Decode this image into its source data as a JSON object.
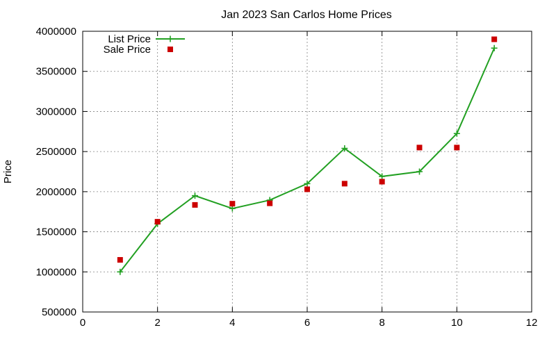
{
  "chart_data": {
    "type": "line",
    "title": "Jan 2023 San Carlos Home Prices",
    "xlabel": "",
    "ylabel": "Price",
    "xlim": [
      0,
      12
    ],
    "ylim": [
      500000,
      4000000
    ],
    "xticks": [
      "0",
      "2",
      "4",
      "6",
      "8",
      "10",
      "12"
    ],
    "yticks": [
      "500000",
      "1000000",
      "1500000",
      "2000000",
      "2500000",
      "3000000",
      "3500000",
      "4000000"
    ],
    "grid": true,
    "legend_position": "top-left",
    "x": [
      1,
      2,
      3,
      4,
      5,
      6,
      7,
      8,
      9,
      10,
      11
    ],
    "series": [
      {
        "name": "List Price",
        "style": "line-points",
        "marker": "plus",
        "color": "#22a022",
        "values": [
          1000000,
          1600000,
          1950000,
          1790000,
          1895000,
          2100000,
          2540000,
          2190000,
          2250000,
          2725000,
          3790000
        ]
      },
      {
        "name": "Sale Price",
        "style": "points",
        "marker": "square",
        "color": "#cc0000",
        "values": [
          1150000,
          1625000,
          1835000,
          1850000,
          1855000,
          2030000,
          2100000,
          2125000,
          2550000,
          2550000,
          3900000
        ]
      }
    ]
  }
}
